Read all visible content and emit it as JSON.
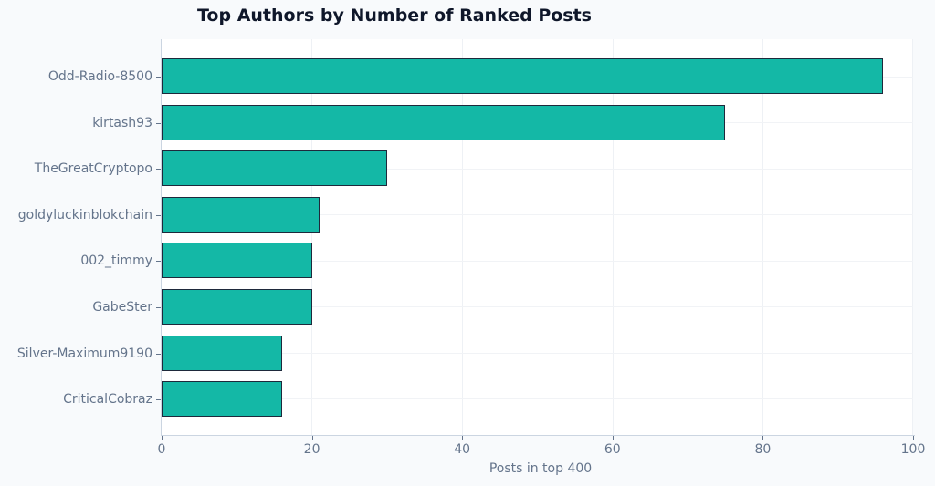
{
  "chart_data": {
    "type": "bar",
    "orientation": "horizontal",
    "title": "Top Authors by Number of Ranked Posts",
    "xlabel": "Posts in top 400",
    "ylabel": "",
    "categories": [
      "Odd-Radio-8500",
      "kirtash93",
      "TheGreatCryptopo",
      "goldyluckinblokchain",
      "002_timmy",
      "GabeSter",
      "Silver-Maximum9190",
      "CriticalCobraz"
    ],
    "values": [
      96,
      75,
      30,
      21,
      20,
      20,
      16,
      16
    ],
    "xlim": [
      0,
      100
    ],
    "xticks": [
      "0",
      "20",
      "40",
      "60",
      "80",
      "100"
    ],
    "grid": true,
    "legend": null,
    "bar_color": "#14b8a6",
    "bar_edge_color": "#1e293b"
  }
}
